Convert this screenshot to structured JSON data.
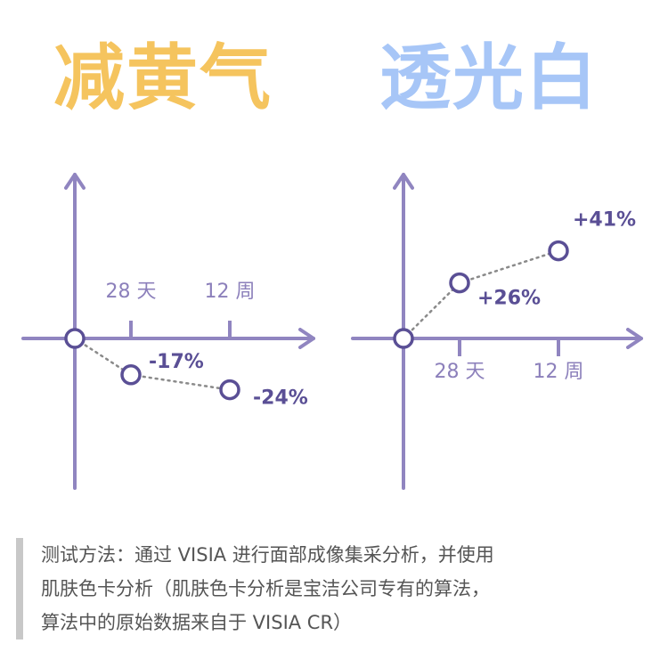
{
  "colors": {
    "title_left": "#f5c45e",
    "title_right": "#a7c6f7",
    "axis": "#9085c0",
    "marker": "#5a4f95",
    "tick_text": "#8c80bb",
    "note_bar": "#c8c8c8",
    "note_text": "#555555"
  },
  "chart_data": [
    {
      "type": "line",
      "title": "减黄气",
      "categories": [
        "",
        "28 天",
        "12 周"
      ],
      "series": [
        {
          "values": [
            0,
            -17,
            -24
          ],
          "labels": [
            "",
            "-17%",
            "-24%"
          ]
        }
      ],
      "ylim": [
        -40,
        45
      ],
      "grid": false
    },
    {
      "type": "line",
      "title": "透光白",
      "categories": [
        "",
        "28 天",
        "12 周"
      ],
      "series": [
        {
          "values": [
            0,
            26,
            41
          ],
          "labels": [
            "",
            "+26%",
            "+41%"
          ]
        }
      ],
      "ylim": [
        -40,
        45
      ],
      "grid": false
    }
  ],
  "note": {
    "lines": [
      "测试方法：通过 VISIA 进行面部成像集采分析，并使用",
      "肌肤色卡分析（肌肤色卡分析是宝洁公司专有的算法，",
      "算法中的原始数据来自于 VISIA CR）"
    ]
  }
}
